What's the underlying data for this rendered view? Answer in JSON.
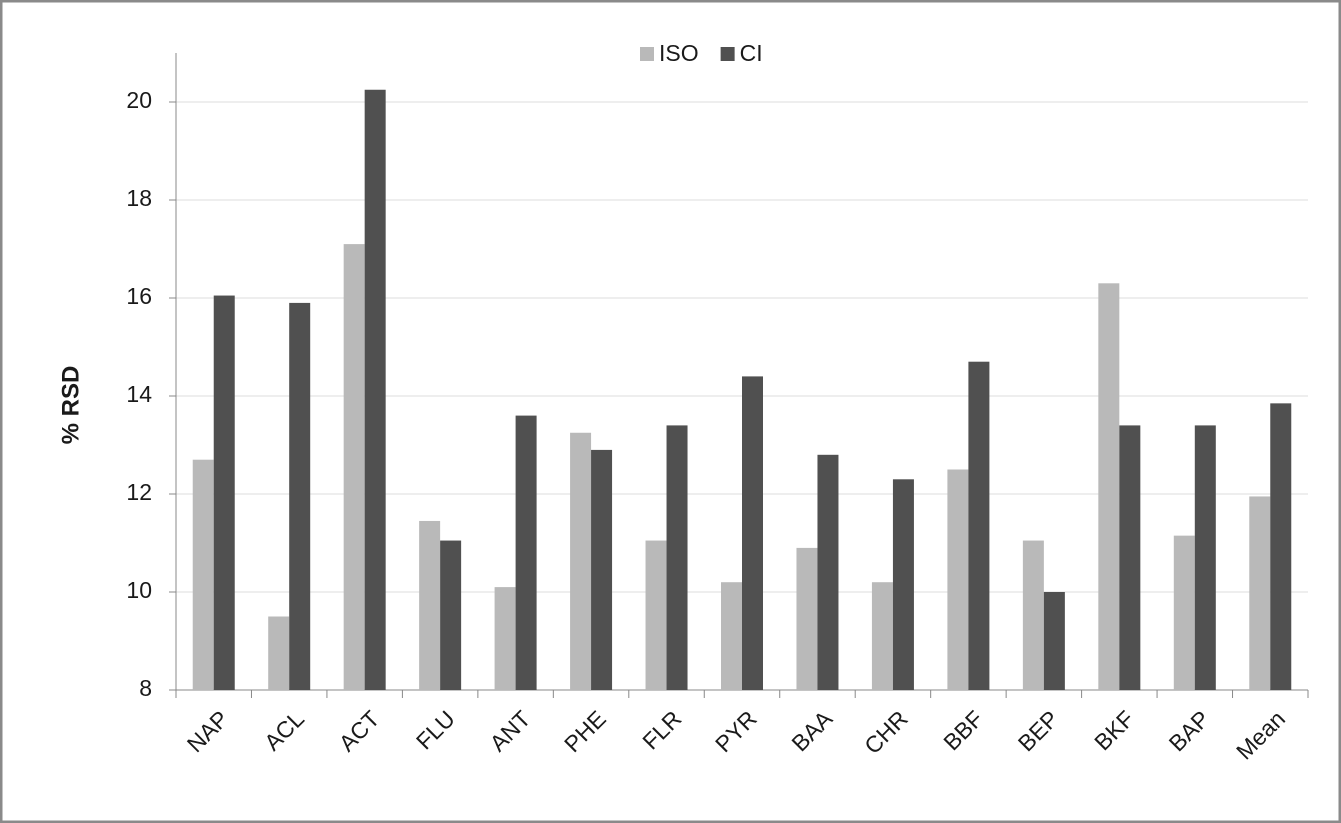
{
  "chart_data": {
    "type": "bar",
    "y_label": "% RSD",
    "categories": [
      "NAP",
      "ACL",
      "ACT",
      "FLU",
      "ANT",
      "PHE",
      "FLR",
      "PYR",
      "BAA",
      "CHR",
      "BBF",
      "BEP",
      "BKF",
      "BAP",
      "Mean"
    ],
    "series": [
      {
        "name": "ISO",
        "color": "#b9b9b9",
        "values": [
          12.7,
          9.5,
          17.1,
          11.45,
          10.1,
          13.25,
          11.05,
          10.2,
          10.9,
          10.2,
          12.5,
          11.05,
          16.3,
          11.15,
          11.95
        ]
      },
      {
        "name": "CI",
        "color": "#505050",
        "values": [
          16.05,
          15.9,
          20.25,
          11.05,
          13.6,
          12.9,
          13.4,
          14.4,
          12.8,
          12.3,
          14.7,
          10.0,
          13.4,
          13.4,
          13.85
        ]
      }
    ],
    "ylim": [
      8,
      21
    ],
    "yticks": [
      8,
      10,
      12,
      14,
      16,
      18,
      20
    ],
    "grid": true,
    "legend": "top"
  }
}
